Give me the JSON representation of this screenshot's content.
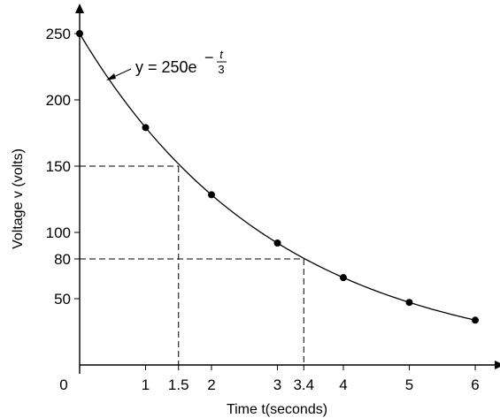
{
  "chart_data": {
    "type": "line",
    "title": "",
    "xlabel": "Time t(seconds)",
    "ylabel": "Voltage v (volts)",
    "xlim": [
      0,
      6.35
    ],
    "ylim": [
      0,
      268
    ],
    "grid": false,
    "origin_label": "0",
    "x_ticks": [
      {
        "value": 1,
        "label": "1"
      },
      {
        "value": 1.5,
        "label": "1.5"
      },
      {
        "value": 2,
        "label": "2"
      },
      {
        "value": 3,
        "label": "3"
      },
      {
        "value": 3.4,
        "label": "3.4"
      },
      {
        "value": 4,
        "label": "4"
      },
      {
        "value": 5,
        "label": "5"
      },
      {
        "value": 6,
        "label": "6"
      }
    ],
    "y_ticks": [
      {
        "value": 50,
        "label": "50"
      },
      {
        "value": 80,
        "label": "80"
      },
      {
        "value": 100,
        "label": "100"
      },
      {
        "value": 150,
        "label": "150"
      },
      {
        "value": 200,
        "label": "200"
      },
      {
        "value": 250,
        "label": "250"
      }
    ],
    "curve": {
      "equation": "y = 250e",
      "exponent_numerator": "t",
      "exponent_denominator": "3",
      "amplitude": 250,
      "time_constant": 3
    },
    "points": {
      "x": [
        0,
        1,
        2,
        3,
        4,
        5,
        6
      ],
      "y": [
        250,
        179.1,
        128.4,
        92.0,
        65.9,
        47.2,
        33.8
      ]
    },
    "reference_lines": [
      {
        "x": 1.5,
        "y": 150
      },
      {
        "x": 3.4,
        "y": 80
      }
    ],
    "colors": {
      "line": "#000000",
      "marker": "#000000",
      "background": "#ffffff"
    }
  }
}
